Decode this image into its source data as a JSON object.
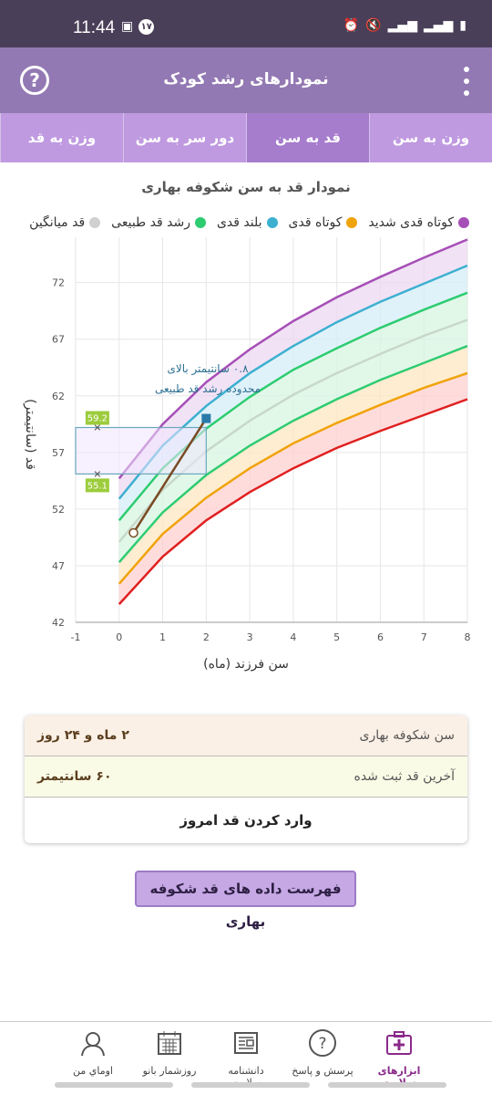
{
  "status": {
    "time": "11:44",
    "notif_count": "۱۷"
  },
  "appbar": {
    "title": "نمودارهای رشد کودک",
    "help": "?"
  },
  "tabs": [
    "وزن به سن",
    "قد به سن",
    "دور سر به سن",
    "وزن به قد"
  ],
  "active_tab": 1,
  "chart_title": "نمودار قد به سن شکوفه بهاری",
  "legend": [
    {
      "label": "کوتاه قدی شدید",
      "color": "#a64fb6"
    },
    {
      "label": "کوتاه قدی",
      "color": "#f0a30a"
    },
    {
      "label": "بلند قدی",
      "color": "#3db0d0"
    },
    {
      "label": "رشد قد طبیعی",
      "color": "#2ecc71"
    },
    {
      "label": "قد میانگین",
      "color": "#d0d0d0"
    }
  ],
  "chart_data": {
    "type": "line",
    "x": [
      0,
      1,
      2,
      3,
      4,
      5,
      6,
      7,
      8
    ],
    "xlim": [
      -1,
      8
    ],
    "ylim": [
      42,
      76
    ],
    "x_ticks": [
      -1,
      0,
      1,
      2,
      3,
      4,
      5,
      6,
      7,
      8
    ],
    "y_ticks": [
      42,
      47,
      52,
      57,
      62,
      67,
      72
    ],
    "xlabel": "سن فرزند (ماه)",
    "ylabel": "قد (سانتیمتر)",
    "series": [
      {
        "name": "",
        "color": "#e02020",
        "values": [
          43.6,
          47.8,
          51.0,
          53.5,
          55.6,
          57.4,
          58.9,
          60.3,
          61.7
        ]
      },
      {
        "name": "",
        "color": "#f0a30a",
        "values": [
          45.4,
          49.8,
          53.0,
          55.6,
          57.8,
          59.6,
          61.2,
          62.7,
          64.0
        ]
      },
      {
        "name": "",
        "color": "#2ecc71",
        "values": [
          47.3,
          51.7,
          55.0,
          57.6,
          59.8,
          61.7,
          63.4,
          64.9,
          66.4
        ]
      },
      {
        "name": "",
        "color": "#c8d8c8",
        "values": [
          49.1,
          53.7,
          57.1,
          59.8,
          62.1,
          64.0,
          65.7,
          67.3,
          68.7
        ]
      },
      {
        "name": "",
        "color": "#2ecc71",
        "values": [
          51.0,
          55.6,
          59.1,
          61.9,
          64.3,
          66.2,
          68.0,
          69.6,
          71.1
        ]
      },
      {
        "name": "",
        "color": "#3db0d0",
        "values": [
          52.9,
          57.6,
          61.1,
          64.0,
          66.4,
          68.5,
          70.3,
          71.9,
          73.5
        ]
      },
      {
        "name": "",
        "color": "#a64fb6",
        "values": [
          54.7,
          59.5,
          63.2,
          66.1,
          68.6,
          70.7,
          72.5,
          74.2,
          75.8
        ]
      }
    ],
    "child_points": [
      {
        "x": 0.33,
        "y": 49.9
      },
      {
        "x": 2.0,
        "y": 60.0
      }
    ],
    "range_box": {
      "x": [
        -1,
        2
      ],
      "y": [
        55.1,
        59.2
      ],
      "low_label": "55.1",
      "high_label": "59.2"
    },
    "annotation": [
      "۰.۸ سانتیمتر بالای",
      "محدوده رشد قد طبیعی"
    ]
  },
  "info": {
    "age_label": "سن شکوفه بهاری",
    "age_value": "۲ ماه و ۲۴ روز",
    "height_label": "آخرین قد ثبت شده",
    "height_value": "۶۰ سانتیمتر",
    "enter_today": "وارد کردن قد امروز"
  },
  "list_button": "فهرست داده های قد شکوفه بهاری",
  "bottom_nav": [
    {
      "label": "ابزارهای سلامت",
      "icon": "medical-kit-icon"
    },
    {
      "label": "پرسش و پاسخ",
      "icon": "question-icon"
    },
    {
      "label": "دانشنامه سلامت",
      "icon": "newspaper-icon"
    },
    {
      "label": "روزشمار بانو",
      "icon": "calendar-icon"
    },
    {
      "label": "اوماي من",
      "icon": "profile-icon"
    }
  ]
}
